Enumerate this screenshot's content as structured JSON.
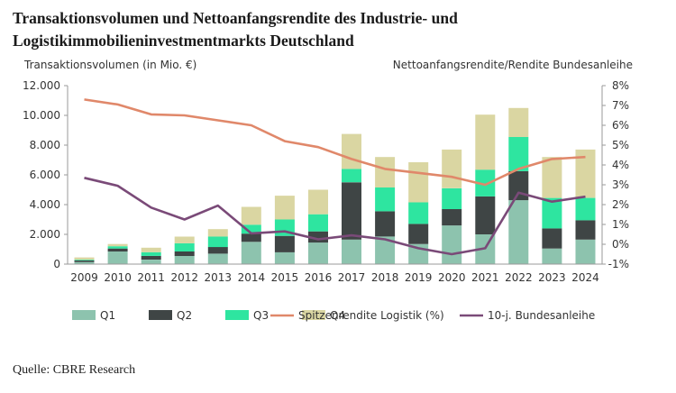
{
  "title": "Transaktionsvolumen und Nettoanfangsrendite des Industrie- und Logistikimmobilieninvestmentmarkts Deutschland",
  "source": "Quelle: CBRE Research",
  "colors": {
    "q1": "#8dc3ae",
    "q2": "#3f4545",
    "q3": "#2ee5a0",
    "q4": "#dad6a2",
    "prime_yield": "#e0886a",
    "bund": "#7a4a78",
    "axis": "#9a9a9a"
  },
  "chart_data": {
    "type": "bar",
    "stacked": true,
    "ylabel": "Transaktionsvolumen (in Mio. €)",
    "y2label": "Nettoanfangsrendite/Rendite Bundesanleihe",
    "ylim": [
      0,
      12000
    ],
    "y2lim": [
      -1,
      8
    ],
    "y_ticks": [
      "0",
      "2.000",
      "4.000",
      "6.000",
      "8.000",
      "10.000",
      "12.000"
    ],
    "y2_ticks": [
      "-1%",
      "0%",
      "1%",
      "2%",
      "3%",
      "4%",
      "5%",
      "6%",
      "7%",
      "8%"
    ],
    "legend_position": "bottom",
    "grid": false,
    "categories": [
      "2009",
      "2010",
      "2011",
      "2012",
      "2013",
      "2014",
      "2015",
      "2016",
      "2017",
      "2018",
      "2019",
      "2020",
      "2021",
      "2022",
      "2023",
      "2024"
    ],
    "series": [
      {
        "name": "Q1",
        "values": [
          150,
          850,
          300,
          550,
          700,
          1500,
          800,
          1450,
          1650,
          1850,
          1350,
          2600,
          2000,
          4300,
          1050,
          1650
        ]
      },
      {
        "name": "Q2",
        "values": [
          100,
          200,
          250,
          300,
          450,
          550,
          1100,
          750,
          3850,
          1700,
          1350,
          1100,
          2550,
          1950,
          1350,
          1300
        ]
      },
      {
        "name": "Q3",
        "values": [
          50,
          150,
          250,
          550,
          700,
          600,
          1100,
          1150,
          900,
          1600,
          1450,
          1400,
          1800,
          2300,
          2050,
          1500
        ]
      },
      {
        "name": "Q4",
        "values": [
          150,
          150,
          300,
          450,
          500,
          1200,
          1600,
          1650,
          2350,
          2050,
          2700,
          2600,
          3700,
          1950,
          2750,
          3250
        ]
      }
    ],
    "lines": [
      {
        "name": "Spitzenrendite Logistik (%)",
        "axis": "right",
        "values": [
          7.3,
          7.05,
          6.55,
          6.5,
          6.25,
          6.0,
          5.2,
          4.9,
          4.3,
          3.8,
          3.6,
          3.4,
          3.0,
          3.8,
          4.3,
          4.4
        ]
      },
      {
        "name": "10-j. Bundesanleihe",
        "axis": "right",
        "values": [
          3.35,
          2.95,
          1.85,
          1.25,
          1.95,
          0.55,
          0.65,
          0.25,
          0.45,
          0.25,
          -0.2,
          -0.5,
          -0.2,
          2.6,
          2.15,
          2.4
        ]
      }
    ]
  }
}
